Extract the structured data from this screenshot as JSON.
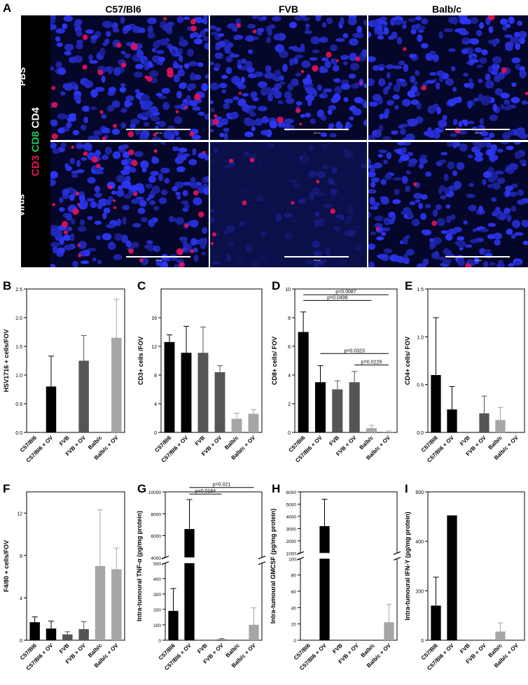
{
  "figure": {
    "panel_a": {
      "letter": "A",
      "columns": [
        "C57/Bl6",
        "FVB",
        "Balb/c"
      ],
      "rows": [
        "PBS",
        "Virus"
      ],
      "stain": {
        "cd3": "CD3",
        "cd8": "CD8",
        "cd4": "CD4"
      },
      "stain_colors": {
        "cd3": "#e8115b",
        "cd8": "#22c55e",
        "cd4": "#ffffff"
      },
      "scale_bar_label": "100 µm"
    }
  },
  "chart_data": [
    {
      "id": "B",
      "letter": "B",
      "type": "bar",
      "categories": [
        "C57/Bl6",
        "C57/Bl6 + OV",
        "FVB",
        "FVB + OV",
        "Balb/c",
        "Balb/c + OV"
      ],
      "values": [
        0,
        0.8,
        0,
        1.25,
        0,
        1.65
      ],
      "errors": [
        0,
        0.53,
        0,
        0.44,
        0,
        0.67
      ],
      "colors": [
        "#000000",
        "#000000",
        "#555555",
        "#555555",
        "#a6a6a6",
        "#a6a6a6"
      ],
      "ylabel": "HSV1716 + cells/FOV",
      "ylim": [
        0,
        2.5
      ],
      "yticks": [
        "0.0",
        "0.5",
        "1.0",
        "1.5",
        "2.0",
        "2.5"
      ],
      "ytick_values": [
        0,
        0.5,
        1.0,
        1.5,
        2.0,
        2.5
      ]
    },
    {
      "id": "C",
      "letter": "C",
      "type": "bar",
      "categories": [
        "C57/Bl6",
        "C57/Bl6 + OV",
        "FVB",
        "FVB + OV",
        "Balb/c",
        "Balb/c + OV"
      ],
      "values": [
        12.6,
        11.1,
        11.1,
        8.4,
        1.9,
        2.6
      ],
      "errors": [
        1.0,
        3.7,
        3.6,
        0.9,
        0.8,
        0.6
      ],
      "colors": [
        "#000000",
        "#000000",
        "#555555",
        "#555555",
        "#a6a6a6",
        "#a6a6a6"
      ],
      "ylabel": "CD3+ cells /FOV",
      "ylim": [
        0,
        20
      ],
      "yticks": [
        "0",
        "4",
        "8",
        "12",
        "16"
      ],
      "ytick_values": [
        0,
        4,
        8,
        12,
        16
      ]
    },
    {
      "id": "D",
      "letter": "D",
      "type": "bar",
      "categories": [
        "C57/Bl6",
        "C57/Bl6 + OV",
        "FVB",
        "FVB + OV",
        "Balb/c",
        "Balb/c + OV"
      ],
      "values": [
        7.0,
        3.5,
        3.0,
        3.5,
        0.3,
        0.05
      ],
      "errors": [
        1.4,
        1.15,
        0.6,
        0.75,
        0.2,
        0.05
      ],
      "colors": [
        "#000000",
        "#000000",
        "#555555",
        "#555555",
        "#a6a6a6",
        "#a6a6a6"
      ],
      "ylabel": "CD8+ cells/ FOV",
      "ylim": [
        0,
        10
      ],
      "yticks": [
        "0",
        "2",
        "4",
        "6",
        "8",
        "10"
      ],
      "ytick_values": [
        0,
        2,
        4,
        6,
        8,
        10
      ],
      "significance": [
        {
          "from": 0,
          "to": 5,
          "label": "p=0.0087",
          "y": 9.6
        },
        {
          "from": 0,
          "to": 4,
          "label": "p=0.0498",
          "y": 9.2
        },
        {
          "from": 1,
          "to": 5,
          "label": "p=0.0323",
          "y": 5.5
        },
        {
          "from": 3,
          "to": 5,
          "label": "p=0.0229",
          "y": 4.7
        }
      ]
    },
    {
      "id": "E",
      "letter": "E",
      "type": "bar",
      "categories": [
        "C57/Bl6",
        "C57/Bl6 + OV",
        "FVB",
        "FVB + OV",
        "Balb/c",
        "Balb/c + OV"
      ],
      "values": [
        0.6,
        0.24,
        0,
        0.2,
        0.13,
        0
      ],
      "errors": [
        0.6,
        0.24,
        0,
        0.18,
        0.13,
        0
      ],
      "colors": [
        "#000000",
        "#000000",
        "#555555",
        "#555555",
        "#a6a6a6",
        "#a6a6a6"
      ],
      "ylabel": "CD4+ cells/ FOV",
      "ylim": [
        0,
        1.5
      ],
      "yticks": [
        "0.0",
        "0.5",
        "1.0",
        "1.5"
      ],
      "ytick_values": [
        0,
        0.5,
        1.0,
        1.5
      ]
    },
    {
      "id": "F",
      "letter": "F",
      "type": "bar",
      "categories": [
        "C57/Bl6",
        "C57/Bl6 + OV",
        "FVB",
        "FVB + OV",
        "Balb/c",
        "Balb/c + OV"
      ],
      "values": [
        1.7,
        1.1,
        0.55,
        1.05,
        7.0,
        6.7
      ],
      "errors": [
        0.5,
        0.7,
        0.25,
        0.7,
        5.3,
        2.0
      ],
      "colors": [
        "#000000",
        "#000000",
        "#555555",
        "#555555",
        "#a6a6a6",
        "#a6a6a6"
      ],
      "ylabel": "F4/80 + cells/FOV",
      "ylim": [
        0,
        14
      ],
      "yticks": [
        "0",
        "4",
        "8",
        "12"
      ],
      "ytick_values": [
        0,
        4,
        8,
        12
      ]
    },
    {
      "id": "G",
      "letter": "G",
      "type": "bar",
      "categories": [
        "C57/Bl6",
        "C57/Bl6 + OV",
        "FVB",
        "FVB + OV",
        "Balb/c",
        "Balb/c + OV"
      ],
      "values": [
        190,
        6600,
        0,
        5,
        0,
        100
      ],
      "errors": [
        145,
        2700,
        0,
        6,
        0,
        110
      ],
      "colors": [
        "#000000",
        "#000000",
        "#555555",
        "#555555",
        "#a6a6a6",
        "#a6a6a6"
      ],
      "ylabel": "Intra-tumoural TNF-α (pg/mg protein)",
      "axis_break": {
        "low": [
          0,
          500
        ],
        "high": [
          4000,
          10000
        ]
      },
      "yticks": [
        "0",
        "100",
        "200",
        "300",
        "400",
        "500",
        "4000",
        "6000",
        "8000",
        "10000"
      ],
      "ytick_values": [
        0,
        100,
        200,
        300,
        400,
        500,
        4000,
        6000,
        8000,
        10000
      ],
      "significance": [
        {
          "from": 1,
          "to": 5,
          "label": "p=0.021",
          "y": 10400
        },
        {
          "from": 1,
          "to": 3,
          "label": "p=0.0184",
          "y": 9800
        }
      ]
    },
    {
      "id": "H",
      "letter": "H",
      "type": "bar",
      "categories": [
        "C57/Bl6",
        "C57/Bl6 + OV",
        "FVB",
        "FVB + OV",
        "Balb/c",
        "Balb/c + OV"
      ],
      "values": [
        0,
        3200,
        0,
        0,
        0,
        22
      ],
      "errors": [
        0,
        2200,
        0,
        0,
        0,
        22
      ],
      "colors": [
        "#000000",
        "#000000",
        "#555555",
        "#555555",
        "#a6a6a6",
        "#a6a6a6"
      ],
      "ylabel": "Intra-tumoural GMCSF (pg/mg protein)",
      "axis_break": {
        "low": [
          0,
          100
        ],
        "high": [
          1000,
          6000
        ]
      },
      "yticks": [
        "0",
        "20",
        "40",
        "60",
        "80",
        "100",
        "1000",
        "2000",
        "3000",
        "4000",
        "5000",
        "6000"
      ],
      "ytick_values": [
        0,
        20,
        40,
        60,
        80,
        100,
        1000,
        2000,
        3000,
        4000,
        5000,
        6000
      ]
    },
    {
      "id": "I",
      "letter": "I",
      "type": "bar",
      "categories": [
        "C57/Bl6",
        "C57/Bl6 + OV",
        "FVB",
        "FVB + OV",
        "Balb/c",
        "Balb/c + OV"
      ],
      "values": [
        140,
        505,
        0,
        0,
        35,
        0
      ],
      "errors": [
        115,
        0,
        0,
        0,
        35,
        0
      ],
      "colors": [
        "#000000",
        "#000000",
        "#555555",
        "#555555",
        "#a6a6a6",
        "#a6a6a6"
      ],
      "ylabel": "Intra-tumoural IFN-Y (pg/mg protein)",
      "ylim": [
        0,
        600
      ],
      "yticks": [
        "0",
        "200",
        "400",
        "600"
      ],
      "ytick_values": [
        0,
        200,
        400,
        600
      ]
    }
  ]
}
